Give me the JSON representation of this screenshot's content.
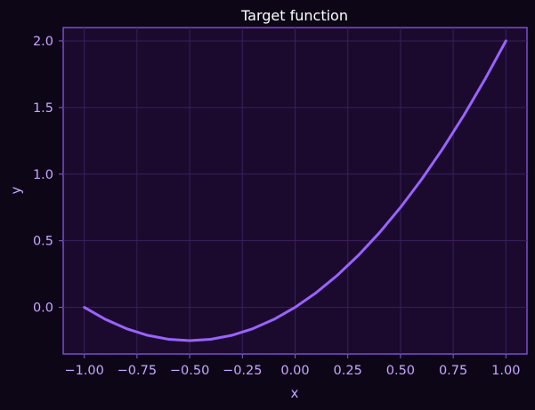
{
  "colors": {
    "page_background": "#0c0617",
    "plot_background": "#1b0a2e",
    "frame": "#7d4cd1",
    "grid": "#3a1f5c",
    "line": "#9a63ff",
    "text": "#c9a6ff",
    "title": "#ffffff"
  },
  "chart_data": {
    "type": "line",
    "title": "Target function",
    "xlabel": "x",
    "ylabel": "y",
    "xlim": [
      -1.1,
      1.1
    ],
    "ylim": [
      -0.35,
      2.1
    ],
    "grid": true,
    "legend": "none",
    "xticks": [
      -1.0,
      -0.75,
      -0.5,
      -0.25,
      0.0,
      0.25,
      0.5,
      0.75,
      1.0
    ],
    "xtick_labels": [
      "−1.00",
      "−0.75",
      "−0.50",
      "−0.25",
      "0.00",
      "0.25",
      "0.50",
      "0.75",
      "1.00"
    ],
    "yticks": [
      0.0,
      0.5,
      1.0,
      1.5,
      2.0
    ],
    "ytick_labels": [
      "0.0",
      "0.5",
      "1.0",
      "1.5",
      "2.0"
    ],
    "series": [
      {
        "x": [
          -1.0,
          -0.9,
          -0.8,
          -0.7,
          -0.6,
          -0.5,
          -0.4,
          -0.3,
          -0.2,
          -0.1,
          0.0,
          0.1,
          0.2,
          0.3,
          0.4,
          0.5,
          0.6,
          0.7,
          0.8,
          0.9,
          1.0
        ],
        "y": [
          0.0,
          -0.09,
          -0.16,
          -0.21,
          -0.24,
          -0.25,
          -0.24,
          -0.21,
          -0.16,
          -0.09,
          0.0,
          0.11,
          0.24,
          0.39,
          0.56,
          0.75,
          0.96,
          1.19,
          1.44,
          1.71,
          2.0
        ]
      }
    ]
  }
}
